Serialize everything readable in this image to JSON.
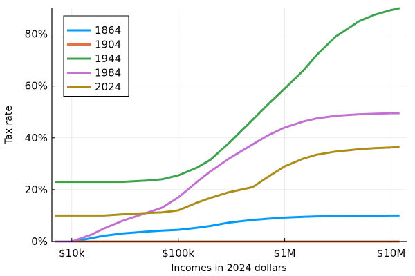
{
  "chart_data": {
    "type": "line",
    "title": "",
    "xlabel": "Incomes in 2024 dollars",
    "ylabel": "Tax rate",
    "xscale": "log",
    "xlim": [
      6500,
      14000000
    ],
    "ylim": [
      0,
      0.9
    ],
    "x_ticks": [
      {
        "value": 10000,
        "label": "$10k"
      },
      {
        "value": 100000,
        "label": "$100k"
      },
      {
        "value": 1000000,
        "label": "$1M"
      },
      {
        "value": 10000000,
        "label": "$10M"
      }
    ],
    "y_ticks": [
      {
        "value": 0,
        "label": "0%"
      },
      {
        "value": 0.2,
        "label": "20%"
      },
      {
        "value": 0.4,
        "label": "40%"
      },
      {
        "value": 0.6,
        "label": "60%"
      },
      {
        "value": 0.8,
        "label": "80%"
      }
    ],
    "grid": true,
    "legend_position": "top-left",
    "x": [
      7000,
      10000,
      15000,
      20000,
      30000,
      50000,
      70000,
      100000,
      150000,
      200000,
      300000,
      500000,
      700000,
      1000000,
      1500000,
      2000000,
      3000000,
      5000000,
      7000000,
      10000000,
      12000000
    ],
    "series": [
      {
        "name": "1864",
        "color": "#009af9",
        "values": [
          0,
          0,
          0.012,
          0.022,
          0.031,
          0.038,
          0.042,
          0.045,
          0.053,
          0.06,
          0.073,
          0.083,
          0.088,
          0.092,
          0.095,
          0.097,
          0.098,
          0.099,
          0.099,
          0.1,
          0.1
        ]
      },
      {
        "name": "1904",
        "color": "#e26f46",
        "values": [
          0,
          0,
          0,
          0,
          0,
          0,
          0,
          0,
          0,
          0,
          0,
          0,
          0,
          0,
          0,
          0,
          0,
          0,
          0,
          0,
          0
        ]
      },
      {
        "name": "1944",
        "color": "#3da44d",
        "values": [
          0.23,
          0.23,
          0.23,
          0.23,
          0.23,
          0.235,
          0.24,
          0.255,
          0.285,
          0.315,
          0.38,
          0.47,
          0.53,
          0.59,
          0.66,
          0.72,
          0.79,
          0.85,
          0.875,
          0.893,
          0.9
        ]
      },
      {
        "name": "1984",
        "color": "#c271d2",
        "values": [
          0,
          0,
          0.025,
          0.05,
          0.08,
          0.11,
          0.13,
          0.17,
          0.23,
          0.27,
          0.32,
          0.375,
          0.41,
          0.44,
          0.463,
          0.475,
          0.485,
          0.491,
          0.493,
          0.495,
          0.495
        ]
      },
      {
        "name": "2024",
        "color": "#ac8d18",
        "values": [
          0.1,
          0.1,
          0.1,
          0.1,
          0.105,
          0.11,
          0.112,
          0.12,
          0.15,
          0.168,
          0.19,
          0.21,
          0.25,
          0.29,
          0.32,
          0.335,
          0.347,
          0.356,
          0.36,
          0.363,
          0.365
        ]
      }
    ]
  }
}
